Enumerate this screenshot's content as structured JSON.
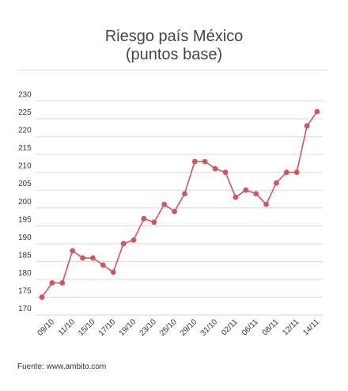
{
  "chart_data": {
    "type": "line",
    "title": "Riesgo país México",
    "subtitle": "(puntos base)",
    "xlabel": "",
    "ylabel": "",
    "ylim": [
      170,
      230
    ],
    "yticks": [
      170,
      175,
      180,
      185,
      190,
      195,
      200,
      205,
      210,
      215,
      220,
      225,
      230
    ],
    "x_tick_labels": [
      "09/10",
      "11/10",
      "15/10",
      "17/10",
      "19/10",
      "23/10",
      "25/10",
      "29/10",
      "31/10",
      "02/11",
      "06/11",
      "08/11",
      "12/11",
      "14/11"
    ],
    "grid": "horizontal",
    "series": [
      {
        "values": [
          175,
          179,
          179,
          188,
          186,
          186,
          184,
          182,
          190,
          191,
          197,
          196,
          201,
          199,
          204,
          213,
          213,
          211,
          210,
          203,
          205,
          204,
          201,
          207,
          210,
          210,
          223,
          227
        ],
        "color": "#d0555e"
      }
    ],
    "source": "Fuente: www.ambito.com"
  }
}
